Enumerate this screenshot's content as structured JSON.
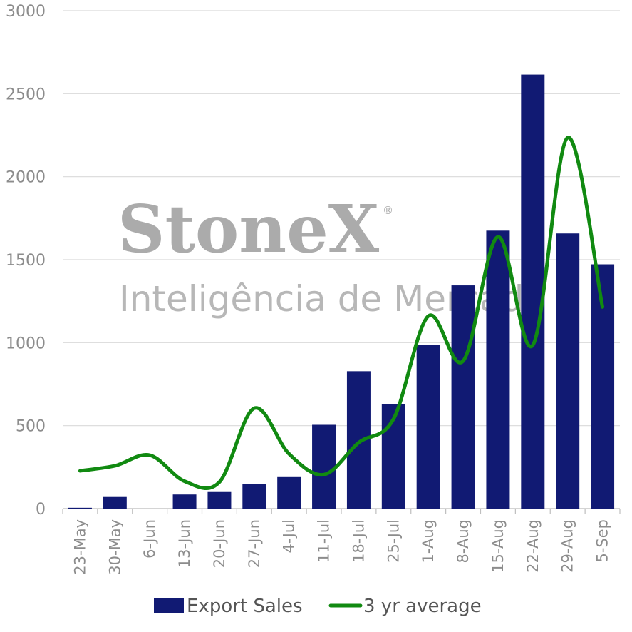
{
  "chart_data": {
    "type": "bar",
    "categories": [
      "23-May",
      "30-May",
      "6-Jun",
      "13-Jun",
      "20-Jun",
      "27-Jun",
      "4-Jul",
      "11-Jul",
      "18-Jul",
      "25-Jul",
      "1-Aug",
      "8-Aug",
      "15-Aug",
      "22-Aug",
      "29-Aug",
      "5-Sep"
    ],
    "series": [
      {
        "name": "Export Sales",
        "kind": "bar",
        "color": "#111a73",
        "values": [
          5,
          70,
          0,
          85,
          100,
          148,
          190,
          505,
          828,
          630,
          988,
          1345,
          1675,
          2615,
          1658,
          1472
        ]
      },
      {
        "name": "3 yr average",
        "kind": "line",
        "color": "#118a11",
        "values": [
          228,
          258,
          322,
          165,
          160,
          605,
          330,
          205,
          398,
          540,
          1160,
          890,
          1638,
          985,
          2235,
          1215
        ]
      }
    ],
    "yticks": [
      0,
      500,
      1000,
      1500,
      2000,
      2500,
      3000
    ],
    "ylim": [
      0,
      3000
    ],
    "grid": true,
    "legend_position": "bottom"
  },
  "watermark": {
    "brand": "StoneX",
    "registered": "®",
    "tagline": "Inteligência de Mercado"
  }
}
